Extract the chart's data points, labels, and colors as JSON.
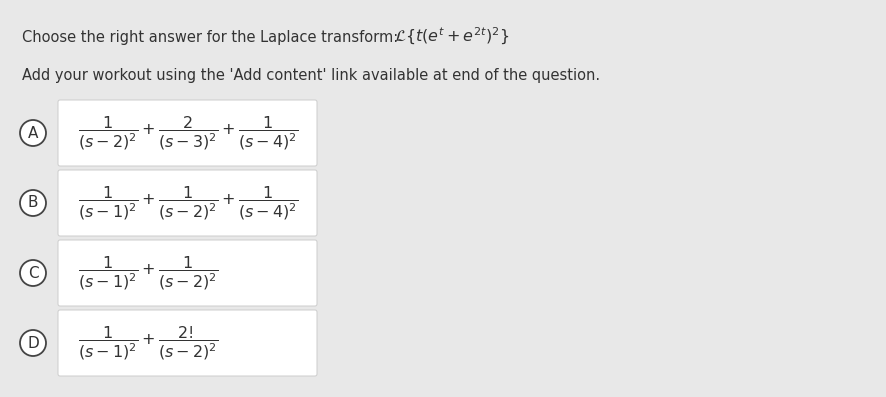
{
  "background_color": "#e8e8e8",
  "box_color": "#ffffff",
  "box_edge": "#cccccc",
  "circle_edge": "#444444",
  "circle_bg": "#ffffff",
  "text_color": "#333333",
  "title_plain": "Choose the right answer for the Laplace transform: ",
  "title_math": "$\\mathcal{L}\\{t(e^{t}+e^{2t})^{2}\\}$",
  "subtitle": "Add your workout using the 'Add content' link available at end of the question.",
  "options": [
    {
      "label": "A",
      "math": "$\\dfrac{1}{(s-2)^{2}}+\\dfrac{2}{(s-3)^{2}}+\\dfrac{1}{(s-4)^{2}}$"
    },
    {
      "label": "B",
      "math": "$\\dfrac{1}{(s-1)^{2}}+\\dfrac{1}{(s-2)^{2}}+\\dfrac{1}{(s-4)^{2}}$"
    },
    {
      "label": "C",
      "math": "$\\dfrac{1}{(s-1)^{2}}+\\dfrac{1}{(s-2)^{2}}$"
    },
    {
      "label": "D",
      "math": "$\\dfrac{1}{(s-1)^{2}}+\\dfrac{2!}{(s-2)^{2}}$"
    }
  ],
  "title_fontsize": 10.5,
  "subtitle_fontsize": 10.5,
  "math_fontsize": 11.5,
  "label_fontsize": 11
}
